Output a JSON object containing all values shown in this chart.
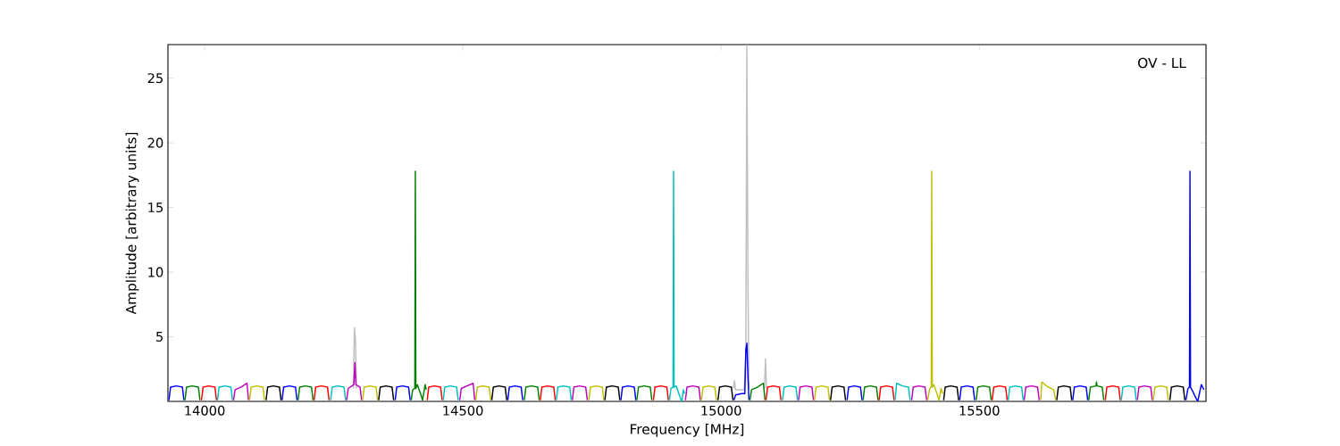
{
  "chart_data": {
    "type": "line",
    "xlabel": "Frequency [MHz]",
    "ylabel": "Amplitude [arbitrary units]",
    "annotations": [
      "OV - LL"
    ],
    "xlim": [
      13929,
      15939
    ],
    "ylim": [
      0,
      27.6
    ],
    "xticks": [
      14000,
      14500,
      15000,
      15500
    ],
    "yticks": [
      5,
      10,
      15,
      20,
      25
    ],
    "series": [
      {
        "color": "#bfbfbf",
        "x": [
          14288,
          14290,
          14292,
          14294,
          null,
          15024,
          15026,
          15028,
          15045,
          15048,
          15050,
          15052,
          15054,
          null,
          15084,
          15086,
          15088
        ],
        "values": [
          1.0,
          5.7,
          4.8,
          1.0,
          null,
          1.0,
          1.6,
          0.9,
          0.9,
          4.0,
          27.6,
          9.5,
          1.0,
          null,
          1.0,
          3.3,
          1.0
        ]
      },
      {
        "color": "#0000ff",
        "x": [
          13931,
          13934,
          13945,
          13957,
          13960,
          null,
          14150,
          14153,
          14164,
          14176,
          14179,
          null,
          14369,
          14372,
          14383,
          14395,
          14398,
          null,
          14587,
          14590,
          14601,
          14613,
          14616,
          null,
          14806,
          14809,
          14820,
          14832,
          14835,
          null,
          15025,
          15028,
          15040,
          15046,
          15048,
          15050,
          15052,
          15054,
          null,
          15244,
          15247,
          15258,
          15270,
          15273,
          null,
          15462,
          15465,
          15476,
          15488,
          15491,
          null,
          15681,
          15684,
          15695,
          15707,
          15710,
          null,
          15900,
          15904,
          15907,
          15908,
          15909,
          15913,
          15919,
          15923,
          15930,
          15935
        ],
        "values": [
          0.1,
          1.1,
          1.2,
          1.1,
          0.1,
          null,
          0.1,
          1.1,
          1.2,
          1.1,
          0.1,
          null,
          0.1,
          1.1,
          1.2,
          1.1,
          0.1,
          null,
          0.1,
          1.1,
          1.2,
          1.1,
          0.1,
          null,
          0.1,
          1.1,
          1.2,
          1.1,
          0.1,
          null,
          0.1,
          0.5,
          0.6,
          0.6,
          4.0,
          4.5,
          2.0,
          0.1,
          null,
          0.1,
          1.1,
          1.2,
          1.1,
          0.1,
          null,
          0.1,
          1.1,
          1.2,
          1.1,
          0.1,
          null,
          0.1,
          1.1,
          1.2,
          1.1,
          0.1,
          null,
          0.1,
          1.0,
          1.1,
          17.8,
          1.1,
          0.8,
          0.3,
          0.0,
          1.3,
          0.9
        ]
      },
      {
        "color": "#008000",
        "x": [
          13962,
          13965,
          13976,
          13988,
          13991,
          null,
          14181,
          14184,
          14195,
          14207,
          14210,
          null,
          14400,
          14403,
          14407,
          14408,
          14409,
          14412,
          14418,
          14422,
          14427,
          14429,
          null,
          14619,
          14622,
          14633,
          14645,
          14648,
          null,
          14837,
          14840,
          14851,
          14863,
          14866,
          null,
          15056,
          15059,
          15070,
          15082,
          15085,
          null,
          15275,
          15278,
          15289,
          15301,
          15304,
          null,
          15494,
          15497,
          15508,
          15520,
          15523,
          null,
          15712,
          15715,
          15726,
          15727,
          15728,
          15738,
          15741
        ],
        "values": [
          0.1,
          1.1,
          1.2,
          1.1,
          0.1,
          null,
          0.1,
          1.1,
          1.2,
          1.1,
          0.1,
          null,
          0.1,
          0.9,
          1.0,
          17.8,
          1.0,
          1.3,
          0.6,
          0.1,
          1.3,
          0.9,
          null,
          0.1,
          1.1,
          1.2,
          1.1,
          0.1,
          null,
          0.1,
          1.1,
          1.2,
          1.1,
          0.1,
          null,
          0.1,
          0.9,
          1.1,
          1.4,
          0.1,
          null,
          0.1,
          1.1,
          1.2,
          1.1,
          0.1,
          null,
          0.1,
          1.1,
          1.2,
          1.1,
          0.1,
          null,
          0.1,
          1.1,
          1.2,
          1.5,
          1.2,
          1.1,
          0.1
        ]
      },
      {
        "color": "#ff0000",
        "x": [
          13994,
          13997,
          14008,
          14020,
          14023,
          null,
          14212,
          14215,
          14226,
          14238,
          14241,
          null,
          14431,
          14434,
          14445,
          14457,
          14460,
          null,
          14650,
          14653,
          14664,
          14676,
          14679,
          null,
          14869,
          14872,
          14883,
          14895,
          14898,
          null,
          15087,
          15090,
          15101,
          15113,
          15116,
          null,
          15306,
          15309,
          15320,
          15332,
          15335,
          null,
          15525,
          15528,
          15539,
          15551,
          15554,
          null,
          15744,
          15747,
          15758,
          15770,
          15773
        ],
        "values": [
          0.1,
          1.1,
          1.2,
          1.1,
          0.1,
          null,
          0.1,
          1.1,
          1.2,
          1.1,
          0.1,
          null,
          0.1,
          1.1,
          1.2,
          1.1,
          0.1,
          null,
          0.1,
          1.1,
          1.2,
          1.1,
          0.1,
          null,
          0.1,
          1.1,
          1.2,
          1.1,
          0.1,
          null,
          0.1,
          1.1,
          1.2,
          1.1,
          0.1,
          null,
          0.1,
          1.1,
          1.2,
          1.1,
          0.1,
          null,
          0.1,
          1.1,
          1.2,
          1.1,
          0.1,
          null,
          0.1,
          1.1,
          1.2,
          1.1,
          0.1
        ]
      },
      {
        "color": "#00bfbf",
        "x": [
          14025,
          14028,
          14039,
          14051,
          14054,
          null,
          14244,
          14247,
          14258,
          14270,
          14273,
          null,
          14462,
          14465,
          14476,
          14488,
          14491,
          null,
          14681,
          14684,
          14695,
          14707,
          14710,
          null,
          14900,
          14903,
          14907,
          14908,
          14909,
          14913,
          14920,
          14924,
          14927,
          14929,
          null,
          15119,
          15122,
          15133,
          15145,
          15148,
          null,
          15337,
          15340,
          15351,
          15363,
          15366,
          null,
          15556,
          15559,
          15570,
          15582,
          15585,
          null,
          15775,
          15778,
          15789,
          15801,
          15804
        ],
        "values": [
          0.1,
          1.1,
          1.2,
          1.1,
          0.1,
          null,
          0.1,
          1.1,
          1.2,
          1.1,
          0.1,
          null,
          0.1,
          1.1,
          1.2,
          1.1,
          0.1,
          null,
          0.1,
          1.1,
          1.2,
          1.1,
          0.1,
          null,
          0.1,
          1.0,
          1.1,
          17.8,
          1.1,
          1.2,
          0.4,
          0.0,
          0.9,
          0.6,
          null,
          0.1,
          1.1,
          1.2,
          1.1,
          0.1,
          null,
          0.1,
          1.4,
          1.2,
          1.1,
          0.1,
          null,
          0.1,
          1.1,
          1.2,
          1.1,
          0.1,
          null,
          0.1,
          1.1,
          1.2,
          1.1,
          0.1
        ]
      },
      {
        "color": "#bf00bf",
        "x": [
          14056,
          14059,
          14070,
          14082,
          14085,
          null,
          14275,
          14278,
          14289,
          14291,
          14293,
          14301,
          14304,
          null,
          14494,
          14497,
          14508,
          14520,
          14523,
          null,
          14712,
          14715,
          14726,
          14738,
          14741,
          null,
          14931,
          14934,
          14945,
          14957,
          14960,
          null,
          15150,
          15153,
          15164,
          15176,
          15179,
          null,
          15369,
          15372,
          15383,
          15395,
          15398,
          null,
          15587,
          15590,
          15601,
          15613,
          15616,
          null,
          15806,
          15809,
          15820,
          15832,
          15835
        ],
        "values": [
          0.1,
          0.9,
          1.1,
          1.4,
          0.1,
          null,
          0.1,
          1.0,
          1.3,
          3.0,
          1.3,
          1.1,
          0.1,
          null,
          0.1,
          1.0,
          1.2,
          1.4,
          0.1,
          null,
          0.1,
          1.1,
          1.2,
          1.1,
          0.1,
          null,
          0.1,
          1.1,
          1.2,
          1.1,
          0.1,
          null,
          0.1,
          1.1,
          1.2,
          1.1,
          0.1,
          null,
          0.1,
          1.1,
          1.2,
          1.1,
          0.1,
          null,
          0.1,
          1.1,
          1.2,
          1.1,
          0.1,
          null,
          0.1,
          1.1,
          1.2,
          1.1,
          0.1
        ]
      },
      {
        "color": "#bfbf00",
        "x": [
          14087,
          14090,
          14101,
          14113,
          14116,
          null,
          14306,
          14309,
          14320,
          14332,
          14335,
          null,
          14525,
          14528,
          14539,
          14551,
          14554,
          null,
          14744,
          14747,
          14758,
          14770,
          14773,
          null,
          14962,
          14965,
          14976,
          14988,
          14991,
          null,
          15181,
          15184,
          15195,
          15207,
          15210,
          null,
          15400,
          15404,
          15407,
          15408,
          15409,
          15412,
          15418,
          15422,
          15426,
          15429,
          null,
          15619,
          15621,
          15630,
          15644,
          15648,
          null,
          15837,
          15840,
          15851,
          15863,
          15866
        ],
        "values": [
          0.1,
          1.1,
          1.2,
          1.1,
          0.1,
          null,
          0.1,
          1.1,
          1.2,
          1.1,
          0.1,
          null,
          0.1,
          1.1,
          1.2,
          1.1,
          0.1,
          null,
          0.1,
          1.1,
          1.2,
          1.1,
          0.1,
          null,
          0.1,
          1.1,
          1.2,
          1.1,
          0.1,
          null,
          0.1,
          1.1,
          1.2,
          1.1,
          0.1,
          null,
          0.1,
          1.0,
          1.1,
          17.8,
          1.1,
          1.3,
          0.6,
          0.1,
          1.0,
          0.6,
          null,
          0.1,
          1.5,
          1.2,
          0.9,
          0.1,
          null,
          0.1,
          1.1,
          1.2,
          1.1,
          0.1
        ]
      },
      {
        "color": "#000000",
        "x": [
          14119,
          14122,
          14133,
          14145,
          14148,
          null,
          14337,
          14340,
          14351,
          14363,
          14366,
          null,
          14556,
          14559,
          14570,
          14582,
          14585,
          null,
          14775,
          14778,
          14789,
          14801,
          14804,
          null,
          14994,
          14997,
          15008,
          15020,
          15023,
          null,
          15212,
          15215,
          15226,
          15238,
          15241,
          null,
          15431,
          15434,
          15445,
          15457,
          15460,
          null,
          15650,
          15653,
          15664,
          15676,
          15679,
          null,
          15869,
          15872,
          15883,
          15895,
          15898
        ],
        "values": [
          0.1,
          1.1,
          1.2,
          1.1,
          0.1,
          null,
          0.1,
          1.1,
          1.2,
          1.1,
          0.1,
          null,
          0.1,
          1.1,
          1.2,
          1.1,
          0.1,
          null,
          0.1,
          1.1,
          1.2,
          1.1,
          0.1,
          null,
          0.1,
          1.1,
          1.2,
          1.1,
          0.1,
          null,
          0.1,
          1.1,
          1.2,
          1.1,
          0.1,
          null,
          0.1,
          1.1,
          1.2,
          1.1,
          0.1,
          null,
          0.1,
          1.1,
          1.2,
          1.1,
          0.1,
          null,
          0.1,
          1.1,
          1.2,
          1.1,
          0.1
        ]
      }
    ]
  }
}
